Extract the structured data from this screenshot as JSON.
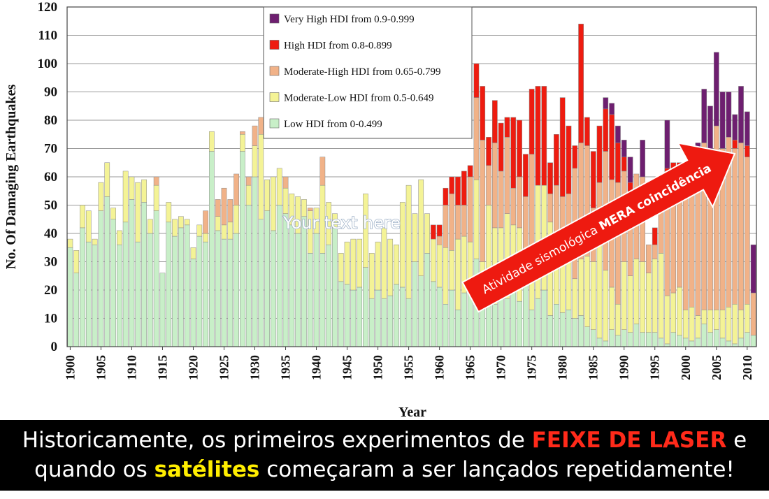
{
  "chart_data": {
    "type": "bar",
    "stacked": true,
    "xlabel": "Year",
    "ylabel": "No. Of Damaging Earthquakes",
    "ylim": [
      0,
      120
    ],
    "yticks": [
      0,
      10,
      20,
      30,
      40,
      50,
      60,
      70,
      80,
      90,
      100,
      110,
      120
    ],
    "xticks": [
      1900,
      1905,
      1910,
      1915,
      1920,
      1925,
      1930,
      1935,
      1940,
      1945,
      1950,
      1955,
      1960,
      1965,
      1970,
      1975,
      1980,
      1985,
      1990,
      1995,
      2000,
      2005,
      2010
    ],
    "grid": true,
    "legend_position": "top-center",
    "x": [
      1900,
      1901,
      1902,
      1903,
      1904,
      1905,
      1906,
      1907,
      1908,
      1909,
      1910,
      1911,
      1912,
      1913,
      1914,
      1915,
      1916,
      1917,
      1918,
      1919,
      1920,
      1921,
      1922,
      1923,
      1924,
      1925,
      1926,
      1927,
      1928,
      1929,
      1930,
      1931,
      1932,
      1933,
      1934,
      1935,
      1936,
      1937,
      1938,
      1939,
      1940,
      1941,
      1942,
      1943,
      1944,
      1945,
      1946,
      1947,
      1948,
      1949,
      1950,
      1951,
      1952,
      1953,
      1954,
      1955,
      1956,
      1957,
      1958,
      1959,
      1960,
      1961,
      1962,
      1963,
      1964,
      1965,
      1966,
      1967,
      1968,
      1969,
      1970,
      1971,
      1972,
      1973,
      1974,
      1975,
      1976,
      1977,
      1978,
      1979,
      1980,
      1981,
      1982,
      1983,
      1984,
      1985,
      1986,
      1987,
      1988,
      1989,
      1990,
      1991,
      1992,
      1993,
      1994,
      1995,
      1996,
      1997,
      1998,
      1999,
      2000,
      2001,
      2002,
      2003,
      2004,
      2005,
      2006,
      2007,
      2008,
      2009,
      2010,
      2011
    ],
    "series": [
      {
        "name": "Low HDI from 0-0.499",
        "color": "#c8efc8",
        "values": [
          35,
          26,
          42,
          37,
          36,
          48,
          53,
          45,
          36,
          44,
          52,
          37,
          51,
          40,
          48,
          26,
          44,
          39,
          42,
          43,
          31,
          39,
          37,
          69,
          41,
          38,
          38,
          40,
          69,
          50,
          60,
          45,
          48,
          41,
          50,
          47,
          43,
          40,
          46,
          33,
          40,
          33,
          36,
          42,
          23,
          22,
          20,
          21,
          28,
          17,
          20,
          17,
          18,
          22,
          21,
          17,
          30,
          25,
          33,
          23,
          21,
          15,
          20,
          13,
          19,
          22,
          31,
          19,
          27,
          15,
          30,
          17,
          20,
          16,
          24,
          13,
          17,
          20,
          11,
          15,
          12,
          13,
          10,
          11,
          7,
          6,
          3,
          2,
          6,
          4,
          6,
          5,
          8,
          5,
          5,
          5,
          3,
          1,
          5,
          4,
          3,
          2,
          3,
          8,
          5,
          6,
          3,
          2,
          1,
          3,
          5,
          4
        ]
      },
      {
        "name": "Moderate-Low HDI from 0.5-0.649",
        "color": "#f4f396",
        "values": [
          3,
          8,
          8,
          11,
          2,
          10,
          12,
          4,
          5,
          18,
          8,
          21,
          8,
          5,
          9,
          0,
          7,
          6,
          4,
          2,
          4,
          4,
          3,
          7,
          5,
          5,
          6,
          10,
          6,
          7,
          11,
          30,
          11,
          19,
          13,
          9,
          11,
          13,
          6,
          15,
          9,
          24,
          15,
          5,
          10,
          15,
          18,
          17,
          26,
          16,
          17,
          25,
          20,
          14,
          30,
          40,
          17,
          34,
          14,
          15,
          15,
          20,
          14,
          25,
          20,
          15,
          28,
          11,
          23,
          27,
          12,
          30,
          23,
          26,
          5,
          18,
          40,
          37,
          33,
          17,
          20,
          23,
          14,
          20,
          25,
          24,
          34,
          25,
          15,
          11,
          24,
          20,
          23,
          25,
          21,
          26,
          30,
          17,
          14,
          17,
          10,
          12,
          8,
          5,
          8,
          7,
          10,
          12,
          14,
          10,
          10,
          0
        ]
      },
      {
        "name": "Moderate-High HDI from 0.65-0.799",
        "color": "#f1b288",
        "values": [
          0,
          0,
          0,
          0,
          0,
          0,
          0,
          0,
          0,
          0,
          0,
          0,
          0,
          0,
          3,
          0,
          0,
          0,
          0,
          0,
          0,
          0,
          8,
          0,
          6,
          13,
          8,
          11,
          1,
          3,
          7,
          6,
          0,
          0,
          0,
          4,
          0,
          0,
          0,
          1,
          0,
          10,
          0,
          0,
          0,
          0,
          0,
          0,
          0,
          0,
          0,
          0,
          0,
          0,
          0,
          0,
          0,
          0,
          0,
          0,
          3,
          15,
          20,
          12,
          11,
          23,
          29,
          43,
          14,
          30,
          20,
          27,
          13,
          18,
          24,
          37,
          0,
          0,
          10,
          25,
          21,
          18,
          39,
          41,
          39,
          19,
          21,
          42,
          38,
          43,
          32,
          25,
          30,
          30,
          10,
          5,
          25,
          40,
          44,
          41,
          50,
          55,
          56,
          59,
          55,
          65,
          57,
          60,
          55,
          59,
          52,
          15
        ]
      },
      {
        "name": "High HDI from 0.8-0.899",
        "color": "#ee1c10",
        "values": [
          0,
          0,
          0,
          0,
          0,
          0,
          0,
          0,
          0,
          0,
          0,
          0,
          0,
          0,
          0,
          0,
          0,
          0,
          0,
          0,
          0,
          0,
          0,
          0,
          0,
          0,
          0,
          0,
          0,
          0,
          0,
          0,
          0,
          0,
          0,
          0,
          0,
          0,
          0,
          0,
          0,
          0,
          0,
          0,
          0,
          0,
          0,
          0,
          0,
          0,
          0,
          0,
          0,
          0,
          0,
          0,
          0,
          0,
          0,
          5,
          4,
          6,
          6,
          10,
          12,
          4,
          12,
          19,
          10,
          15,
          17,
          7,
          25,
          20,
          15,
          23,
          35,
          35,
          11,
          18,
          35,
          24,
          8,
          42,
          10,
          20,
          20,
          15,
          23,
          14,
          5,
          8,
          0,
          0,
          0,
          6,
          0,
          5,
          2,
          3,
          0,
          2,
          0,
          0,
          0,
          0,
          0,
          0,
          3,
          0,
          4,
          0
        ]
      },
      {
        "name": "Very High HDI from 0.9-0.999",
        "color": "#6e1f70",
        "values": [
          0,
          0,
          0,
          0,
          0,
          0,
          0,
          0,
          0,
          0,
          0,
          0,
          0,
          0,
          0,
          0,
          0,
          0,
          0,
          0,
          0,
          0,
          0,
          0,
          0,
          0,
          0,
          0,
          0,
          0,
          0,
          0,
          0,
          0,
          0,
          0,
          0,
          0,
          0,
          0,
          0,
          0,
          0,
          0,
          0,
          0,
          0,
          0,
          0,
          0,
          0,
          0,
          0,
          0,
          0,
          0,
          0,
          0,
          0,
          0,
          0,
          0,
          0,
          0,
          0,
          0,
          0,
          0,
          0,
          0,
          0,
          0,
          0,
          0,
          0,
          0,
          0,
          0,
          0,
          0,
          0,
          0,
          0,
          0,
          0,
          0,
          0,
          4,
          4,
          6,
          6,
          9,
          0,
          13,
          0,
          0,
          0,
          17,
          0,
          0,
          0,
          0,
          5,
          19,
          17,
          26,
          20,
          16,
          9,
          20,
          12,
          17
        ]
      }
    ],
    "legend": [
      "Very High HDI from 0.9-0.999",
      "High HDI from 0.8-0.899",
      "Moderate-High HDI from 0.65-0.799",
      "Moderate-Low HDI from 0.5-0.649",
      "Low HDI from 0-0.499"
    ]
  },
  "overlay": {
    "watermark": "Your text here",
    "arrow_text_prefix": "Atividade sismológica ",
    "arrow_text_bold": "MERA coincidência",
    "arrow_color": "#ee1a10"
  },
  "caption": {
    "line1_prefix": "Historicamente, os primeiros experimentos de ",
    "line1_highlight": "FEIXE DE LASER",
    "line1_suffix": " e",
    "line2_prefix": "quando os ",
    "line2_highlight": "satélites",
    "line2_suffix": " começaram a ser lançados repetidamente!"
  }
}
